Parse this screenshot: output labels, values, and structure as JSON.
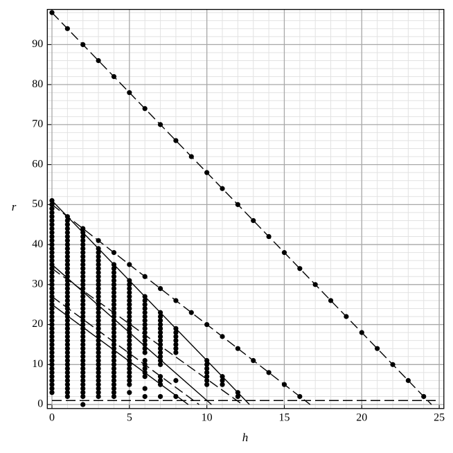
{
  "chart_data": {
    "type": "scatter",
    "xlabel": "h",
    "ylabel": "r",
    "xlim": [
      -0.3,
      25.3
    ],
    "ylim": [
      -1,
      98.8
    ],
    "xticks": [
      0,
      5,
      10,
      15,
      20,
      25
    ],
    "yticks": [
      0,
      10,
      20,
      30,
      40,
      50,
      60,
      70,
      80,
      90
    ],
    "grid": true,
    "xminor": 1,
    "yminor": 2,
    "color": "#000000",
    "lines": [
      {
        "x": [
          0,
          24.5
        ],
        "y": [
          98,
          0
        ],
        "dash": true
      },
      {
        "x": [
          0,
          16.67
        ],
        "y": [
          50,
          0
        ],
        "dash": true
      },
      {
        "x": [
          0,
          12.75
        ],
        "y": [
          51,
          0
        ],
        "dash": false
      },
      {
        "x": [
          0,
          10.3
        ],
        "y": [
          35,
          0
        ],
        "dash": false
      },
      {
        "x": [
          0,
          12.3
        ],
        "y": [
          34,
          0
        ],
        "dash": true
      },
      {
        "x": [
          0,
          8.8
        ],
        "y": [
          25,
          0
        ],
        "dash": false
      },
      {
        "x": [
          0,
          9.5
        ],
        "y": [
          27,
          0
        ],
        "dash": true
      },
      {
        "x": [
          0,
          25
        ],
        "y": [
          1,
          1
        ],
        "dash": true
      }
    ],
    "columns": [
      {
        "h": 0,
        "r": [
          3,
          4,
          5,
          6,
          7,
          8,
          9,
          10,
          11,
          12,
          13,
          14,
          15,
          16,
          17,
          18,
          19,
          20,
          21,
          22,
          23,
          24,
          25,
          26,
          27,
          28,
          29,
          30,
          31,
          32,
          33,
          34,
          35,
          36,
          37,
          38,
          39,
          40,
          41,
          42,
          43,
          44,
          45,
          46,
          47,
          48,
          49,
          50,
          51,
          98
        ]
      },
      {
        "h": 1,
        "r": [
          2,
          3,
          4,
          5,
          6,
          7,
          8,
          9,
          10,
          11,
          12,
          13,
          14,
          15,
          16,
          17,
          18,
          19,
          20,
          21,
          22,
          23,
          24,
          25,
          26,
          27,
          28,
          29,
          30,
          31,
          32,
          33,
          34,
          35,
          36,
          37,
          38,
          39,
          40,
          41,
          42,
          43,
          44,
          45,
          46,
          47,
          94
        ]
      },
      {
        "h": 2,
        "r": [
          0,
          2,
          3,
          4,
          5,
          6,
          7,
          8,
          9,
          10,
          11,
          12,
          13,
          14,
          15,
          16,
          17,
          18,
          19,
          20,
          21,
          22,
          23,
          24,
          25,
          26,
          27,
          28,
          29,
          30,
          31,
          32,
          33,
          34,
          35,
          36,
          37,
          38,
          39,
          40,
          41,
          42,
          43,
          44,
          90
        ]
      },
      {
        "h": 3,
        "r": [
          2,
          3,
          4,
          5,
          6,
          7,
          8,
          9,
          10,
          11,
          12,
          13,
          14,
          15,
          16,
          17,
          18,
          19,
          20,
          21,
          22,
          23,
          24,
          25,
          26,
          27,
          28,
          29,
          30,
          31,
          32,
          33,
          34,
          35,
          36,
          37,
          38,
          39,
          41,
          86
        ]
      },
      {
        "h": 4,
        "r": [
          2,
          3,
          4,
          5,
          6,
          7,
          8,
          9,
          10,
          11,
          12,
          13,
          14,
          15,
          16,
          17,
          18,
          19,
          20,
          21,
          22,
          23,
          24,
          25,
          26,
          27,
          28,
          29,
          30,
          31,
          32,
          33,
          34,
          35,
          38,
          82
        ]
      },
      {
        "h": 5,
        "r": [
          3,
          5,
          6,
          7,
          8,
          9,
          10,
          11,
          12,
          13,
          14,
          15,
          16,
          17,
          18,
          19,
          20,
          21,
          22,
          23,
          24,
          25,
          26,
          27,
          28,
          29,
          30,
          31,
          35,
          78
        ]
      },
      {
        "h": 6,
        "r": [
          2,
          4,
          7,
          8,
          9,
          10,
          11,
          13,
          14,
          15,
          16,
          17,
          18,
          19,
          20,
          21,
          22,
          23,
          24,
          25,
          26,
          27,
          32,
          74
        ]
      },
      {
        "h": 7,
        "r": [
          2,
          5,
          6,
          7,
          10,
          11,
          12,
          13,
          14,
          15,
          16,
          17,
          18,
          19,
          20,
          21,
          22,
          23,
          29,
          70
        ]
      },
      {
        "h": 8,
        "r": [
          2,
          6,
          13,
          14,
          15,
          16,
          17,
          18,
          19,
          26,
          66
        ]
      },
      {
        "h": 9,
        "r": [
          23,
          62
        ]
      },
      {
        "h": 10,
        "r": [
          5,
          6,
          7,
          8,
          9,
          10,
          11,
          20,
          58
        ]
      },
      {
        "h": 11,
        "r": [
          5,
          6,
          7,
          17,
          54
        ]
      },
      {
        "h": 12,
        "r": [
          2,
          3,
          14,
          50
        ]
      },
      {
        "h": 13,
        "r": [
          11,
          46
        ]
      },
      {
        "h": 14,
        "r": [
          8,
          42
        ]
      },
      {
        "h": 15,
        "r": [
          5,
          38
        ]
      },
      {
        "h": 16,
        "r": [
          2,
          34
        ]
      },
      {
        "h": 17,
        "r": [
          30
        ]
      },
      {
        "h": 18,
        "r": [
          26
        ]
      },
      {
        "h": 19,
        "r": [
          22
        ]
      },
      {
        "h": 20,
        "r": [
          18
        ]
      },
      {
        "h": 21,
        "r": [
          14
        ]
      },
      {
        "h": 22,
        "r": [
          10
        ]
      },
      {
        "h": 23,
        "r": [
          6
        ]
      },
      {
        "h": 24,
        "r": [
          2
        ]
      }
    ]
  }
}
